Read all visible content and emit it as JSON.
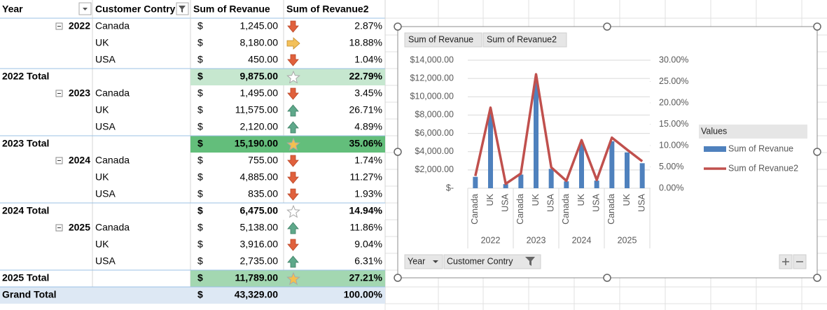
{
  "table": {
    "headers": [
      "Year",
      "Customer Contry",
      "Sum of Revanue",
      "Sum of Revanue2"
    ],
    "rows": [
      {
        "year": "2022",
        "country": "Canada",
        "currency": "$",
        "revenue": "1,245.00",
        "share": "2.87%"
      },
      {
        "country": "UK",
        "currency": "$",
        "revenue": "8,180.00",
        "share": "18.88%"
      },
      {
        "country": "USA",
        "currency": "$",
        "revenue": "450.00",
        "share": "1.04%"
      },
      {
        "year": "2022 Total",
        "currency": "$",
        "revenue": "9,875.00",
        "share": "22.79%"
      },
      {
        "year": "2023",
        "country": "Canada",
        "currency": "$",
        "revenue": "1,495.00",
        "share": "3.45%"
      },
      {
        "country": "UK",
        "currency": "$",
        "revenue": "11,575.00",
        "share": "26.71%"
      },
      {
        "country": "USA",
        "currency": "$",
        "revenue": "2,120.00",
        "share": "4.89%"
      },
      {
        "year": "2023 Total",
        "currency": "$",
        "revenue": "15,190.00",
        "share": "35.06%"
      },
      {
        "year": "2024",
        "country": "Canada",
        "currency": "$",
        "revenue": "755.00",
        "share": "1.74%"
      },
      {
        "country": "UK",
        "currency": "$",
        "revenue": "4,885.00",
        "share": "11.27%"
      },
      {
        "country": "USA",
        "currency": "$",
        "revenue": "835.00",
        "share": "1.93%"
      },
      {
        "year": "2024 Total",
        "currency": "$",
        "revenue": "6,475.00",
        "share": "14.94%"
      },
      {
        "year": "2025",
        "country": "Canada",
        "currency": "$",
        "revenue": "5,138.00",
        "share": "11.86%"
      },
      {
        "country": "UK",
        "currency": "$",
        "revenue": "3,916.00",
        "share": "9.04%"
      },
      {
        "country": "USA",
        "currency": "$",
        "revenue": "2,735.00",
        "share": "6.31%"
      },
      {
        "year": "2025 Total",
        "currency": "$",
        "revenue": "11,789.00",
        "share": "27.21%"
      },
      {
        "year": "Grand Total",
        "currency": "$",
        "revenue": "43,329.00",
        "share": "100.00%"
      }
    ]
  },
  "chart_data": {
    "type": "bar-line",
    "categories": [
      "Canada",
      "UK",
      "USA",
      "Canada",
      "UK",
      "USA",
      "Canada",
      "UK",
      "USA",
      "Canada",
      "UK",
      "USA"
    ],
    "groups": [
      "2022",
      "2023",
      "2024",
      "2025"
    ],
    "series": [
      {
        "name": "Sum of Revanue",
        "color": "#4f81bd",
        "type": "bar",
        "values": [
          1245,
          8180,
          450,
          1495,
          11575,
          2120,
          755,
          4885,
          835,
          5138,
          3916,
          2735
        ]
      },
      {
        "name": "Sum of Revanue2",
        "color": "#c0504d",
        "type": "line",
        "axis": "y2",
        "values": [
          2.87,
          18.88,
          1.04,
          3.45,
          26.71,
          4.89,
          1.74,
          11.27,
          1.93,
          11.86,
          9.04,
          6.31
        ]
      }
    ],
    "ylim": [
      0,
      14000
    ],
    "yticks": [
      {
        "value": 0,
        "label": "$-"
      },
      {
        "value": 2000,
        "label": "$2,000.00"
      },
      {
        "value": 4000,
        "label": "$4,000.00"
      },
      {
        "value": 6000,
        "label": "$6,000.00"
      },
      {
        "value": 8000,
        "label": "$8,000.00"
      },
      {
        "value": 10000,
        "label": "$10,000.00"
      },
      {
        "value": 12000,
        "label": "$12,000.00"
      },
      {
        "value": 14000,
        "label": "$14,000.00"
      }
    ],
    "y2lim": [
      0,
      30
    ],
    "y2ticks": [
      {
        "value": 0,
        "label": "0.00%"
      },
      {
        "value": 5,
        "label": "5.00%"
      },
      {
        "value": 10,
        "label": "10.00%"
      },
      {
        "value": 15,
        "label": "15.00%"
      },
      {
        "value": 20,
        "label": "20.00%"
      },
      {
        "value": 25,
        "label": "25.00%"
      },
      {
        "value": 30,
        "label": "30.00%"
      }
    ],
    "grid": true,
    "legend_title": "Values",
    "legend": "right",
    "axis_fields": [
      "Year",
      "Customer Contry"
    ]
  }
}
